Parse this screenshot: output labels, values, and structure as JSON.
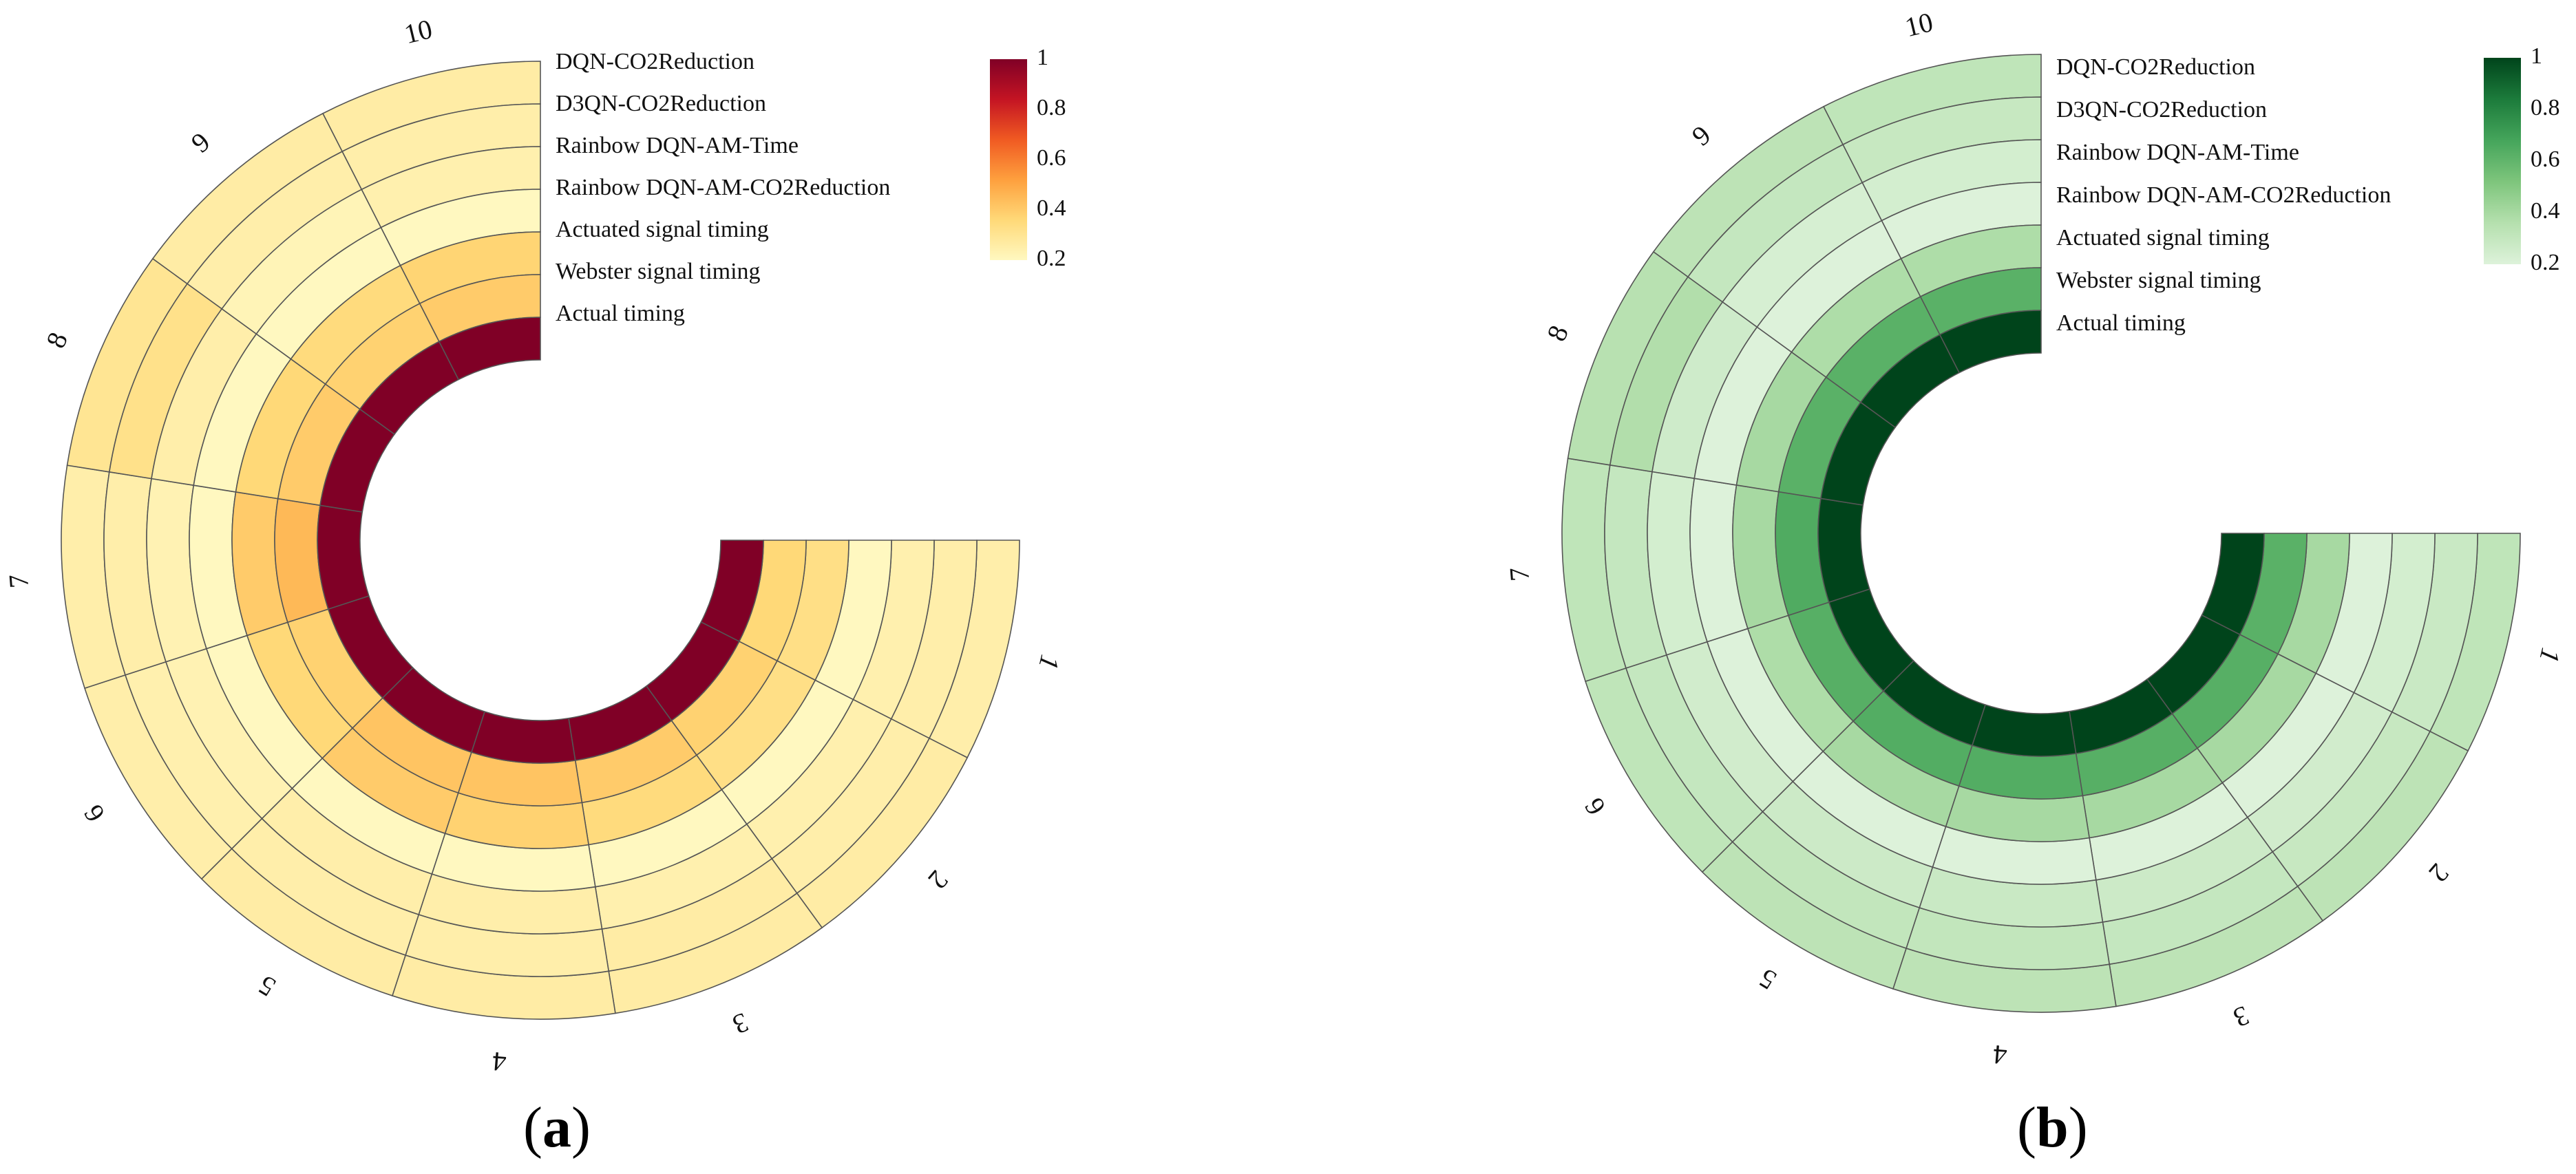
{
  "chart_data": [
    {
      "type": "heatmap",
      "layout": "polar",
      "caption_letter": "a",
      "series_labels": [
        "DQN-CO2Reduction",
        "D3QN-CO2Reduction",
        "Rainbow DQN-AM-Time",
        "Rainbow DQN-AM-CO2Reduction",
        "Actuated signal timing",
        "Webster signal timing",
        "Actual timing"
      ],
      "segments": [
        "1",
        "2",
        "3",
        "4",
        "5",
        "6",
        "7",
        "8",
        "9",
        "10"
      ],
      "values": [
        [
          0.25,
          0.26,
          0.26,
          0.26,
          0.26,
          0.25,
          0.25,
          0.3,
          0.26,
          0.26
        ],
        [
          0.25,
          0.25,
          0.26,
          0.25,
          0.25,
          0.24,
          0.25,
          0.32,
          0.25,
          0.25
        ],
        [
          0.24,
          0.24,
          0.24,
          0.25,
          0.25,
          0.23,
          0.23,
          0.25,
          0.22,
          0.24
        ],
        [
          0.2,
          0.2,
          0.2,
          0.2,
          0.2,
          0.2,
          0.2,
          0.2,
          0.2,
          0.2
        ],
        [
          0.33,
          0.33,
          0.35,
          0.38,
          0.4,
          0.36,
          0.4,
          0.36,
          0.35,
          0.37
        ],
        [
          0.36,
          0.38,
          0.4,
          0.42,
          0.42,
          0.38,
          0.45,
          0.4,
          0.38,
          0.4
        ],
        [
          1.0,
          1.0,
          1.0,
          1.0,
          1.0,
          1.0,
          1.0,
          1.0,
          1.0,
          1.0
        ]
      ],
      "colorbar": {
        "min": 0.2,
        "max": 1,
        "ticks": [
          "1",
          "0.8",
          "0.6",
          "0.4",
          "0.2"
        ],
        "stops": [
          "#fff8c0",
          "#ffd978",
          "#fea03e",
          "#f05a22",
          "#c41423",
          "#800026"
        ]
      }
    },
    {
      "type": "heatmap",
      "layout": "polar",
      "caption_letter": "b",
      "series_labels": [
        "DQN-CO2Reduction",
        "D3QN-CO2Reduction",
        "Rainbow DQN-AM-Time",
        "Rainbow DQN-AM-CO2Reduction",
        "Actuated signal timing",
        "Webster signal timing",
        "Actual timing"
      ],
      "segments": [
        "1",
        "2",
        "3",
        "4",
        "5",
        "6",
        "7",
        "8",
        "9",
        "10"
      ],
      "values": [
        [
          0.32,
          0.33,
          0.33,
          0.33,
          0.33,
          0.32,
          0.32,
          0.35,
          0.33,
          0.32
        ],
        [
          0.28,
          0.29,
          0.3,
          0.31,
          0.31,
          0.3,
          0.3,
          0.37,
          0.3,
          0.29
        ],
        [
          0.24,
          0.25,
          0.27,
          0.28,
          0.27,
          0.25,
          0.24,
          0.26,
          0.23,
          0.24
        ],
        [
          0.2,
          0.2,
          0.2,
          0.2,
          0.2,
          0.2,
          0.2,
          0.2,
          0.2,
          0.2
        ],
        [
          0.4,
          0.4,
          0.4,
          0.4,
          0.4,
          0.38,
          0.4,
          0.4,
          0.38,
          0.38
        ],
        [
          0.62,
          0.63,
          0.63,
          0.64,
          0.64,
          0.63,
          0.65,
          0.62,
          0.62,
          0.62
        ],
        [
          1.0,
          1.0,
          1.0,
          1.0,
          1.0,
          1.0,
          1.0,
          1.0,
          1.0,
          1.0
        ]
      ],
      "colorbar": {
        "min": 0.2,
        "max": 1,
        "ticks": [
          "1",
          "0.8",
          "0.6",
          "0.4",
          "0.2"
        ],
        "stops": [
          "#ddf2da",
          "#b5e0ae",
          "#7ec57c",
          "#45a55b",
          "#1c7b3b",
          "#00441b"
        ]
      }
    }
  ]
}
